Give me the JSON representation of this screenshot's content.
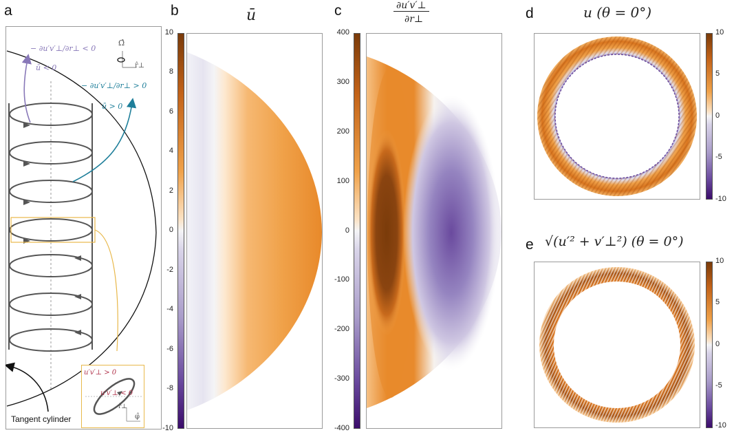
{
  "panels": {
    "a": {
      "label": "a",
      "annot_neg_expr": "− ∂u′v′⊥/∂r⊥ < 0",
      "annot_neg_ubar": "ū < 0",
      "annot_pos_expr": "− ∂u′v′⊥/∂r⊥ > 0",
      "annot_pos_ubar": "ū > 0",
      "axis_omega": "Ω̂",
      "axis_r": "r̂⊥",
      "axis_phi": "φ̂",
      "inset_pos": "u′v′⊥ > 0",
      "inset_neg": "u′v′⊥ < 0",
      "tangent_label": "Tangent cylinder",
      "colors": {
        "purple": "#8878b8",
        "teal": "#1f7f9a",
        "crimson": "#b0324a",
        "gold": "#e8b84a"
      }
    },
    "b": {
      "label": "b",
      "title": "ū",
      "colorbar_ticks": [
        "10",
        "8",
        "6",
        "4",
        "2",
        "0",
        "-2",
        "-4",
        "-6",
        "-8",
        "-10"
      ]
    },
    "c": {
      "label": "c",
      "title_num": "∂u′v′⊥",
      "title_den": "∂r⊥",
      "colorbar_ticks": [
        "400",
        "300",
        "200",
        "100",
        "0",
        "-100",
        "-200",
        "-300",
        "-400"
      ]
    },
    "d": {
      "label": "d",
      "title": "u (θ = 0°)",
      "colorbar_ticks": [
        "10",
        "5",
        "0",
        "-5",
        "-10"
      ]
    },
    "e": {
      "label": "e",
      "title": "√(u′² + v′⊥²) (θ = 0°)",
      "colorbar_ticks": [
        "10",
        "5",
        "0",
        "-5",
        "-10"
      ]
    }
  },
  "colormap": {
    "max": "#7a3b0a",
    "mid_hi": "#f0a24a",
    "zero": "#f4f4f6",
    "mid_lo": "#a99cc9",
    "min": "#3b0c6b"
  }
}
